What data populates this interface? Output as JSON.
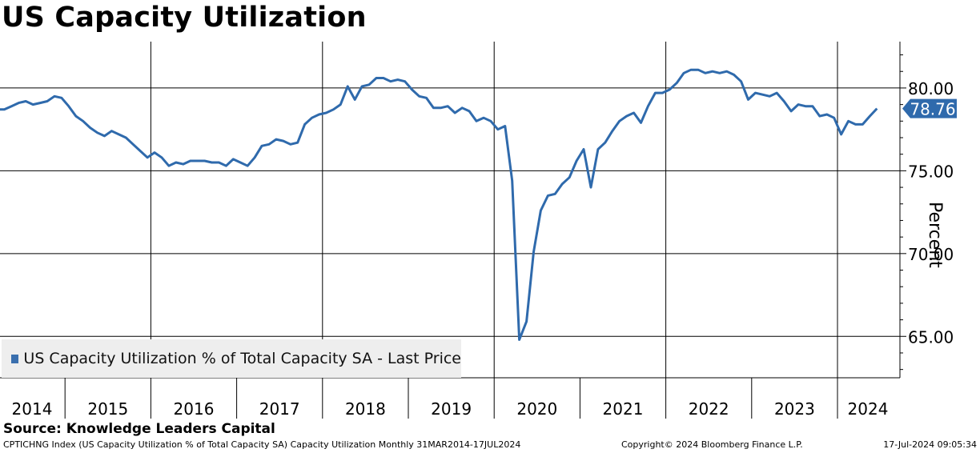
{
  "title": "US Capacity Utilization",
  "source": "Source: Knowledge Leaders Capital",
  "footer": {
    "left": "CPTICHNG Index (US Capacity Utilization % of Total Capacity SA) Capacity Utilization  Monthly 31MAR2014-17JUL2024",
    "middle": "Copyright© 2024 Bloomberg Finance L.P.",
    "right": "17-Jul-2024 09:05:34"
  },
  "colors": {
    "line": "#2f6aac",
    "last_price_box": "#2f6aac"
  },
  "chart_data": {
    "type": "line",
    "title": "US Capacity Utilization",
    "ylabel": "Percent",
    "y_axis_position": "right",
    "ylim": [
      62.5,
      82.8
    ],
    "y_ticks": [
      65,
      70,
      75,
      80
    ],
    "y_tick_labels": [
      "65.00",
      "70.00",
      "75.00",
      "80.00"
    ],
    "x_start": 2014.21,
    "x_step": 0.083333,
    "year_labels": [
      "2014",
      "2015",
      "2016",
      "2017",
      "2018",
      "2019",
      "2020",
      "2021",
      "2022",
      "2023",
      "2024"
    ],
    "grid": true,
    "legend_position": "bottom-left",
    "last_value": 78.76,
    "last_value_label": "78.76",
    "series": [
      {
        "name": "US Capacity Utilization % of Total Capacity SA - Last Price",
        "values": [
          78.7,
          78.7,
          78.9,
          79.1,
          79.2,
          79.0,
          79.1,
          79.2,
          79.5,
          79.4,
          78.9,
          78.3,
          78.0,
          77.6,
          77.3,
          77.1,
          77.4,
          77.2,
          77.0,
          76.6,
          76.2,
          75.8,
          76.1,
          75.8,
          75.3,
          75.5,
          75.4,
          75.6,
          75.6,
          75.6,
          75.5,
          75.5,
          75.3,
          75.7,
          75.5,
          75.3,
          75.8,
          76.5,
          76.6,
          76.9,
          76.8,
          76.6,
          76.7,
          77.8,
          78.2,
          78.4,
          78.5,
          78.7,
          79.0,
          80.1,
          79.3,
          80.1,
          80.2,
          80.6,
          80.6,
          80.4,
          80.5,
          80.4,
          79.9,
          79.5,
          79.4,
          78.8,
          78.8,
          78.9,
          78.5,
          78.8,
          78.6,
          78.0,
          78.2,
          78.0,
          77.5,
          77.7,
          74.4,
          64.8,
          65.9,
          70.1,
          72.6,
          73.5,
          73.6,
          74.2,
          74.6,
          75.6,
          76.3,
          74.0,
          76.3,
          76.7,
          77.4,
          78.0,
          78.3,
          78.5,
          77.9,
          78.9,
          79.7,
          79.7,
          79.9,
          80.3,
          80.9,
          81.1,
          81.1,
          80.9,
          81.0,
          80.9,
          81.0,
          80.8,
          80.4,
          79.3,
          79.7,
          79.6,
          79.5,
          79.7,
          79.2,
          78.6,
          79.0,
          78.9,
          78.9,
          78.3,
          78.4,
          78.2,
          77.2,
          78.0,
          77.8,
          77.8,
          78.3,
          78.76
        ]
      }
    ]
  }
}
